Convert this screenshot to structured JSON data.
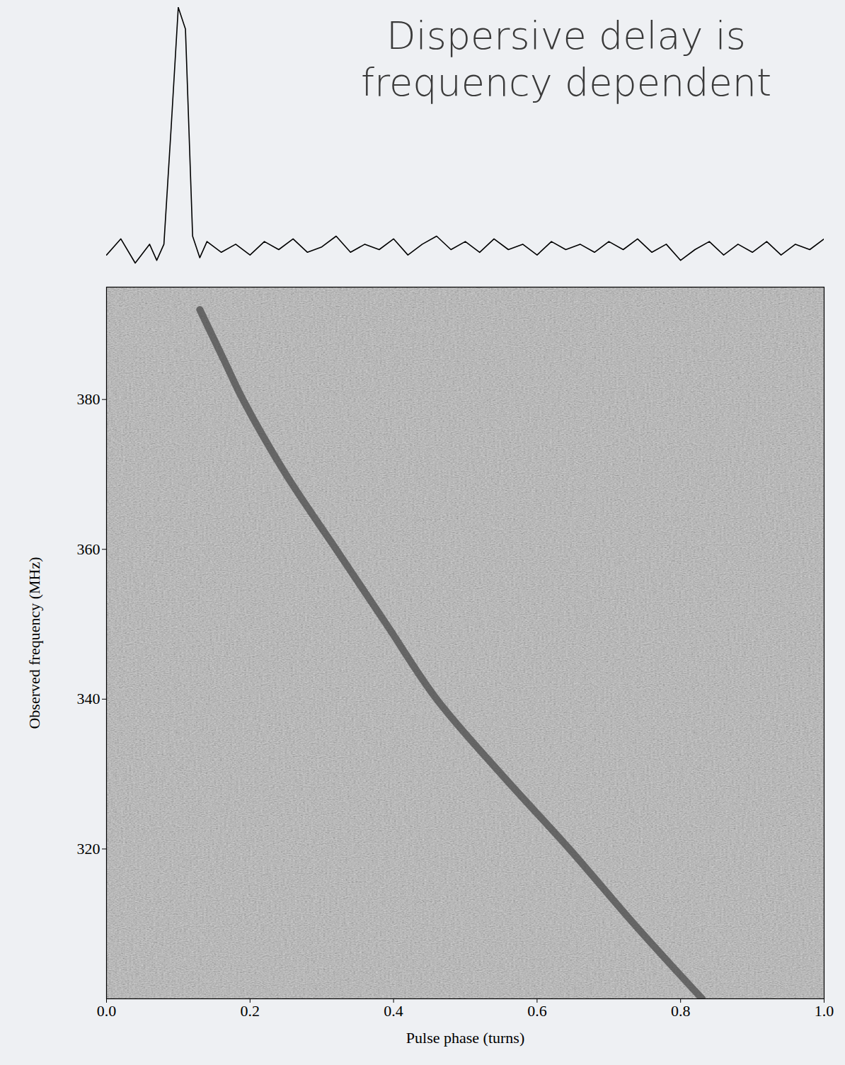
{
  "chart_data": [
    {
      "type": "line",
      "title": "Dispersive delay is frequency dependent",
      "x": [
        0,
        0.02,
        0.04,
        0.06,
        0.07,
        0.08,
        0.09,
        0.1,
        0.11,
        0.12,
        0.13,
        0.14,
        0.16,
        0.18,
        0.2,
        0.22,
        0.24,
        0.26,
        0.28,
        0.3,
        0.32,
        0.34,
        0.36,
        0.38,
        0.4,
        0.42,
        0.44,
        0.46,
        0.48,
        0.5,
        0.52,
        0.54,
        0.56,
        0.58,
        0.6,
        0.62,
        0.64,
        0.66,
        0.68,
        0.7,
        0.72,
        0.74,
        0.76,
        0.78,
        0.8,
        0.82,
        0.84,
        0.86,
        0.88,
        0.9,
        0.92,
        0.94,
        0.96,
        0.98,
        1.0
      ],
      "values": [
        0.08,
        0.14,
        0.05,
        0.12,
        0.06,
        0.12,
        0.55,
        1.0,
        0.92,
        0.15,
        0.07,
        0.13,
        0.09,
        0.12,
        0.08,
        0.13,
        0.1,
        0.14,
        0.09,
        0.11,
        0.15,
        0.09,
        0.12,
        0.1,
        0.14,
        0.08,
        0.12,
        0.15,
        0.1,
        0.13,
        0.09,
        0.14,
        0.1,
        0.12,
        0.08,
        0.13,
        0.1,
        0.12,
        0.09,
        0.13,
        0.1,
        0.14,
        0.09,
        0.12,
        0.06,
        0.1,
        0.13,
        0.08,
        0.12,
        0.09,
        0.13,
        0.08,
        0.12,
        0.1,
        0.14
      ],
      "color": "#000000",
      "xlim": [
        0,
        1
      ],
      "ylim": [
        0,
        1
      ],
      "tick_labels": false
    },
    {
      "type": "line",
      "x_label": "Pulse phase (turns)",
      "y_label": "Observed frequency (MHz)",
      "x": [
        0.13,
        0.165,
        0.19,
        0.25,
        0.32,
        0.39,
        0.46,
        0.55,
        0.645,
        0.735,
        0.83
      ],
      "values": [
        392,
        385,
        380,
        370,
        360,
        350,
        340,
        330,
        320,
        310,
        300
      ],
      "color": "#4a4a4a",
      "xlim": [
        0,
        1
      ],
      "xticks": [
        {
          "value": 0,
          "label": "0.0"
        },
        0.2,
        0.4,
        0.6,
        0.8,
        {
          "value": 1,
          "label": "1.0"
        }
      ],
      "ylim": [
        300,
        395
      ],
      "yticks": [
        320,
        340,
        360,
        380
      ]
    }
  ]
}
